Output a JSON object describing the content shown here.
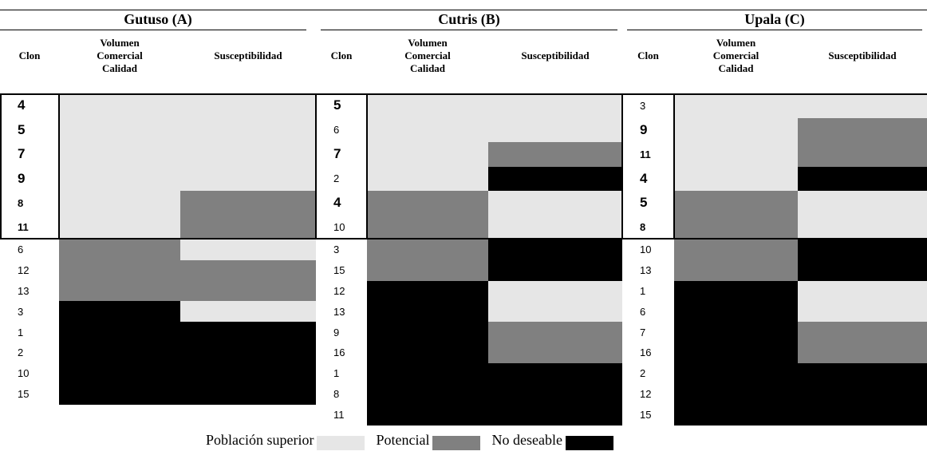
{
  "legend": [
    {
      "label": "Población superior",
      "color": "#e6e6e6"
    },
    {
      "label": "Potencial",
      "color": "#808080"
    },
    {
      "label": "No deseable",
      "color": "#000000"
    }
  ],
  "sites": [
    {
      "title": "Gutuso (A)",
      "columns": [
        "Clon",
        "Volumen\nComercial\nCalidad",
        "Susceptibilidad"
      ],
      "upper": [
        {
          "clon": 4,
          "vol": "Población superior",
          "sus": "Población superior",
          "bold": true,
          "large": true
        },
        {
          "clon": 5,
          "vol": "Población superior",
          "sus": "Población superior",
          "bold": true,
          "large": true
        },
        {
          "clon": 7,
          "vol": "Población superior",
          "sus": "Población superior",
          "bold": true,
          "large": true
        },
        {
          "clon": 9,
          "vol": "Población superior",
          "sus": "Población superior",
          "bold": true,
          "large": true
        },
        {
          "clon": 8,
          "vol": "Población superior",
          "sus": "Potencial",
          "bold": true
        },
        {
          "clon": 11,
          "vol": "Población superior",
          "sus": "Potencial",
          "bold": true
        }
      ],
      "lower": [
        {
          "clon": 6,
          "vol": "Potencial",
          "sus": "Población superior"
        },
        {
          "clon": 12,
          "vol": "Potencial",
          "sus": "Potencial"
        },
        {
          "clon": 13,
          "vol": "Potencial",
          "sus": "Potencial"
        },
        {
          "clon": 3,
          "vol": "No deseable",
          "sus": "Población superior"
        },
        {
          "clon": 1,
          "vol": "No deseable",
          "sus": "No deseable"
        },
        {
          "clon": 2,
          "vol": "No deseable",
          "sus": "No deseable"
        },
        {
          "clon": 10,
          "vol": "No deseable",
          "sus": "No deseable"
        },
        {
          "clon": 15,
          "vol": "No deseable",
          "sus": "No deseable"
        }
      ]
    },
    {
      "title": "Cutris (B)",
      "columns": [
        "Clon",
        "Volumen\nComercial\nCalidad",
        "Susceptibilidad"
      ],
      "upper": [
        {
          "clon": 5,
          "vol": "Población superior",
          "sus": "Población superior",
          "bold": true,
          "large": true
        },
        {
          "clon": 6,
          "vol": "Población superior",
          "sus": "Población superior"
        },
        {
          "clon": 7,
          "vol": "Población superior",
          "sus": "Potencial",
          "bold": true,
          "large": true
        },
        {
          "clon": 2,
          "vol": "Población superior",
          "sus": "No deseable"
        },
        {
          "clon": 4,
          "vol": "Potencial",
          "sus": "Población superior",
          "bold": true,
          "large": true
        },
        {
          "clon": 10,
          "vol": "Potencial",
          "sus": "Población superior"
        }
      ],
      "lower": [
        {
          "clon": 3,
          "vol": "Potencial",
          "sus": "No deseable"
        },
        {
          "clon": 15,
          "vol": "Potencial",
          "sus": "No deseable"
        },
        {
          "clon": 12,
          "vol": "No deseable",
          "sus": "Población superior"
        },
        {
          "clon": 13,
          "vol": "No deseable",
          "sus": "Población superior"
        },
        {
          "clon": 9,
          "vol": "No deseable",
          "sus": "Potencial"
        },
        {
          "clon": 16,
          "vol": "No deseable",
          "sus": "Potencial"
        },
        {
          "clon": 1,
          "vol": "No deseable",
          "sus": "No deseable"
        },
        {
          "clon": 8,
          "vol": "No deseable",
          "sus": "No deseable"
        },
        {
          "clon": 11,
          "vol": "No deseable",
          "sus": "No deseable"
        }
      ]
    },
    {
      "title": "Upala (C)",
      "columns": [
        "Clon",
        "Volumen\nComercial\nCalidad",
        "Susceptibilidad"
      ],
      "upper": [
        {
          "clon": 3,
          "vol": "Población superior",
          "sus": "Población superior"
        },
        {
          "clon": 9,
          "vol": "Población superior",
          "sus": "Potencial",
          "bold": true,
          "large": true
        },
        {
          "clon": 11,
          "vol": "Población superior",
          "sus": "Potencial",
          "bold": true
        },
        {
          "clon": 4,
          "vol": "Población superior",
          "sus": "No deseable",
          "bold": true,
          "large": true
        },
        {
          "clon": 5,
          "vol": "Potencial",
          "sus": "Población superior",
          "bold": true,
          "large": true
        },
        {
          "clon": 8,
          "vol": "Potencial",
          "sus": "Población superior",
          "bold": true
        }
      ],
      "lower": [
        {
          "clon": 10,
          "vol": "Potencial",
          "sus": "No deseable"
        },
        {
          "clon": 13,
          "vol": "Potencial",
          "sus": "No deseable"
        },
        {
          "clon": 1,
          "vol": "No deseable",
          "sus": "Población superior"
        },
        {
          "clon": 6,
          "vol": "No deseable",
          "sus": "Población superior"
        },
        {
          "clon": 7,
          "vol": "No deseable",
          "sus": "Potencial"
        },
        {
          "clon": 16,
          "vol": "No deseable",
          "sus": "Potencial"
        },
        {
          "clon": 2,
          "vol": "No deseable",
          "sus": "No deseable"
        },
        {
          "clon": 12,
          "vol": "No deseable",
          "sus": "No deseable"
        },
        {
          "clon": 15,
          "vol": "No deseable",
          "sus": "No deseable"
        }
      ]
    }
  ]
}
